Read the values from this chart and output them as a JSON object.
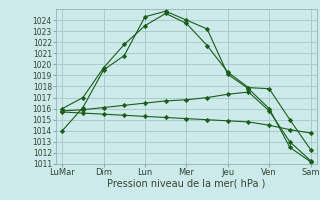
{
  "background_color": "#cceaea",
  "grid_color": "#aacccc",
  "line_color": "#1a5c1a",
  "xlabel": "Pression niveau de la mer( hPa )",
  "ylim": [
    1011,
    1025
  ],
  "yticks": [
    1011,
    1012,
    1013,
    1014,
    1015,
    1016,
    1017,
    1018,
    1019,
    1020,
    1021,
    1022,
    1023,
    1024
  ],
  "x_labels": [
    "LuMar",
    "Dim",
    "Lun",
    "Mer",
    "Jeu",
    "Ven",
    "Sam"
  ],
  "day_positions": [
    0,
    2,
    4,
    6,
    8,
    10,
    12
  ],
  "series": [
    [
      1014.0,
      1016.1,
      1019.5,
      1020.8,
      1024.3,
      1024.8,
      1024.0,
      1023.2,
      1019.1,
      1017.8,
      1016.0,
      1012.5,
      1011.2
    ],
    [
      1016.0,
      1017.0,
      1019.7,
      1021.8,
      1023.5,
      1024.6,
      1023.7,
      1021.7,
      1019.3,
      1017.9,
      1017.8,
      1015.0,
      1012.3
    ],
    [
      1015.8,
      1015.9,
      1016.1,
      1016.3,
      1016.5,
      1016.7,
      1016.8,
      1017.0,
      1017.3,
      1017.5,
      1015.8,
      1013.0,
      1011.3
    ],
    [
      1015.7,
      1015.6,
      1015.5,
      1015.4,
      1015.3,
      1015.2,
      1015.1,
      1015.0,
      1014.9,
      1014.8,
      1014.5,
      1014.1,
      1013.8
    ]
  ],
  "npoints": 13
}
